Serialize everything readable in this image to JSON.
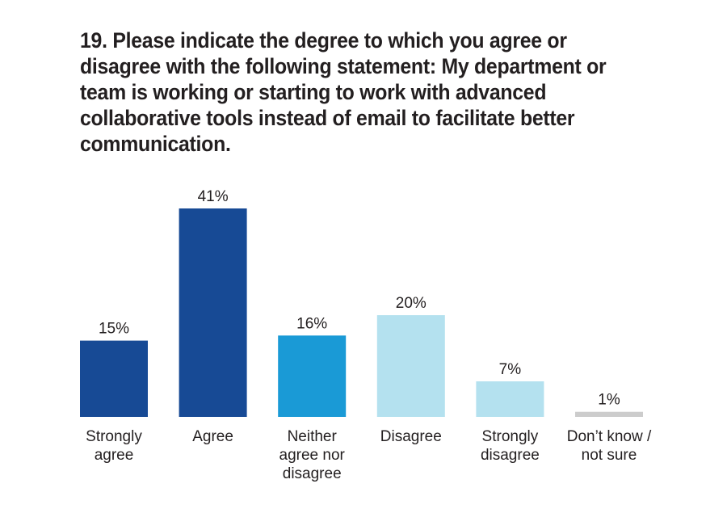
{
  "chart_data": {
    "type": "bar",
    "title": "19. Please indicate the degree to which you agree or disagree with the following statement: My department or team is working or starting to work with advanced collaborative tools instead of email to facilitate better communication.",
    "categories": [
      "Strongly agree",
      "Agree",
      "Neither agree nor disagree",
      "Disagree",
      "Strongly disagree",
      "Don’t know / not sure"
    ],
    "category_label_lines": [
      [
        "Strongly",
        "agree"
      ],
      [
        "Agree"
      ],
      [
        "Neither",
        "agree nor",
        "disagree"
      ],
      [
        "Disagree"
      ],
      [
        "Strongly",
        "disagree"
      ],
      [
        "Don’t know /",
        "not sure"
      ]
    ],
    "values": [
      15,
      41,
      16,
      20,
      7,
      1
    ],
    "value_labels": [
      "15%",
      "41%",
      "16%",
      "20%",
      "7%",
      "1%"
    ],
    "bar_colors": [
      "#174a95",
      "#174a95",
      "#1a9ad6",
      "#b4e1ef",
      "#b4e1ef",
      "#cccccc"
    ],
    "ylim": [
      0,
      41
    ],
    "grid": false,
    "legend": "none",
    "xlabel": "",
    "ylabel": ""
  }
}
